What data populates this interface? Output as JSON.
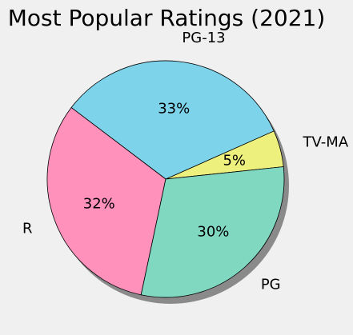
{
  "chart_data": {
    "type": "pie",
    "title": "Most Popular Ratings (2021)",
    "start_angle_deg": 6,
    "direction": "counterclockwise",
    "shadow": true,
    "slices": [
      {
        "label": "TV-MA",
        "value": 5,
        "percent_label": "5%",
        "color": "#eef07e"
      },
      {
        "label": "PG-13",
        "value": 33,
        "percent_label": "33%",
        "color": "#7dd3ea"
      },
      {
        "label": "R",
        "value": 32,
        "percent_label": "32%",
        "color": "#ff91bb"
      },
      {
        "label": "PG",
        "value": 30,
        "percent_label": "30%",
        "color": "#80d8c1"
      }
    ]
  }
}
